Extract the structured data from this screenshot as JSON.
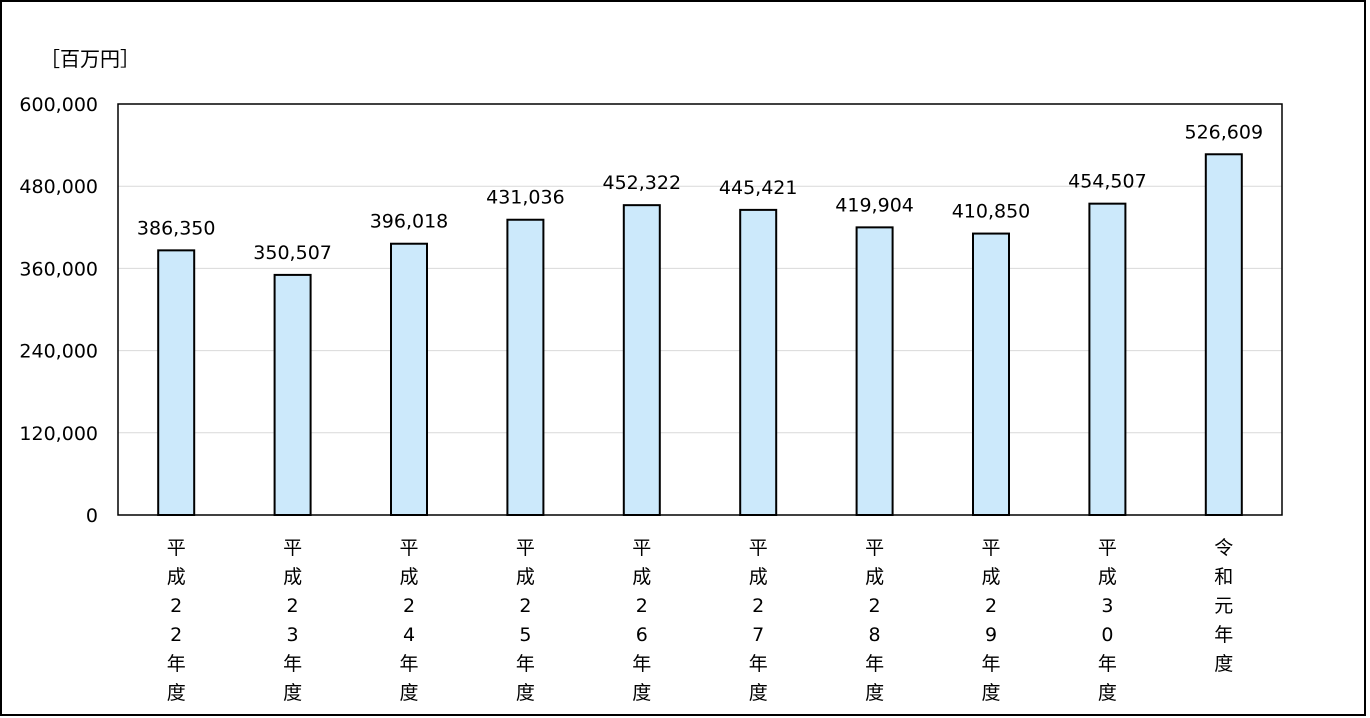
{
  "chart_data": {
    "type": "bar",
    "unit_label": "［百万円］",
    "categories": [
      "平成22年度",
      "平成23年度",
      "平成24年度",
      "平成25年度",
      "平成26年度",
      "平成27年度",
      "平成28年度",
      "平成29年度",
      "平成30年度",
      "令和元年度"
    ],
    "category_label_lines": [
      [
        "平",
        "成",
        "2",
        "2",
        "年",
        "度"
      ],
      [
        "平",
        "成",
        "2",
        "3",
        "年",
        "度"
      ],
      [
        "平",
        "成",
        "2",
        "4",
        "年",
        "度"
      ],
      [
        "平",
        "成",
        "2",
        "5",
        "年",
        "度"
      ],
      [
        "平",
        "成",
        "2",
        "6",
        "年",
        "度"
      ],
      [
        "平",
        "成",
        "2",
        "7",
        "年",
        "度"
      ],
      [
        "平",
        "成",
        "2",
        "8",
        "年",
        "度"
      ],
      [
        "平",
        "成",
        "2",
        "9",
        "年",
        "度"
      ],
      [
        "平",
        "成",
        "3",
        "0",
        "年",
        "度"
      ],
      [
        "令",
        "和",
        "元",
        "年",
        "度"
      ]
    ],
    "values": [
      386350,
      350507,
      396018,
      431036,
      452322,
      445421,
      419904,
      410850,
      454507,
      526609
    ],
    "value_labels": [
      "386,350",
      "350,507",
      "396,018",
      "431,036",
      "452,322",
      "445,421",
      "419,904",
      "410,850",
      "454,507",
      "526,609"
    ],
    "ylim": [
      0,
      600000
    ],
    "yticks": [
      0,
      120000,
      240000,
      360000,
      480000,
      600000
    ],
    "ytick_labels": [
      "0",
      "120,000",
      "240,000",
      "360,000",
      "480,000",
      "600,000"
    ],
    "grid": true,
    "bar_fill": "#cce9fb",
    "bar_stroke": "#000000",
    "grid_color": "#d9d9d9"
  }
}
